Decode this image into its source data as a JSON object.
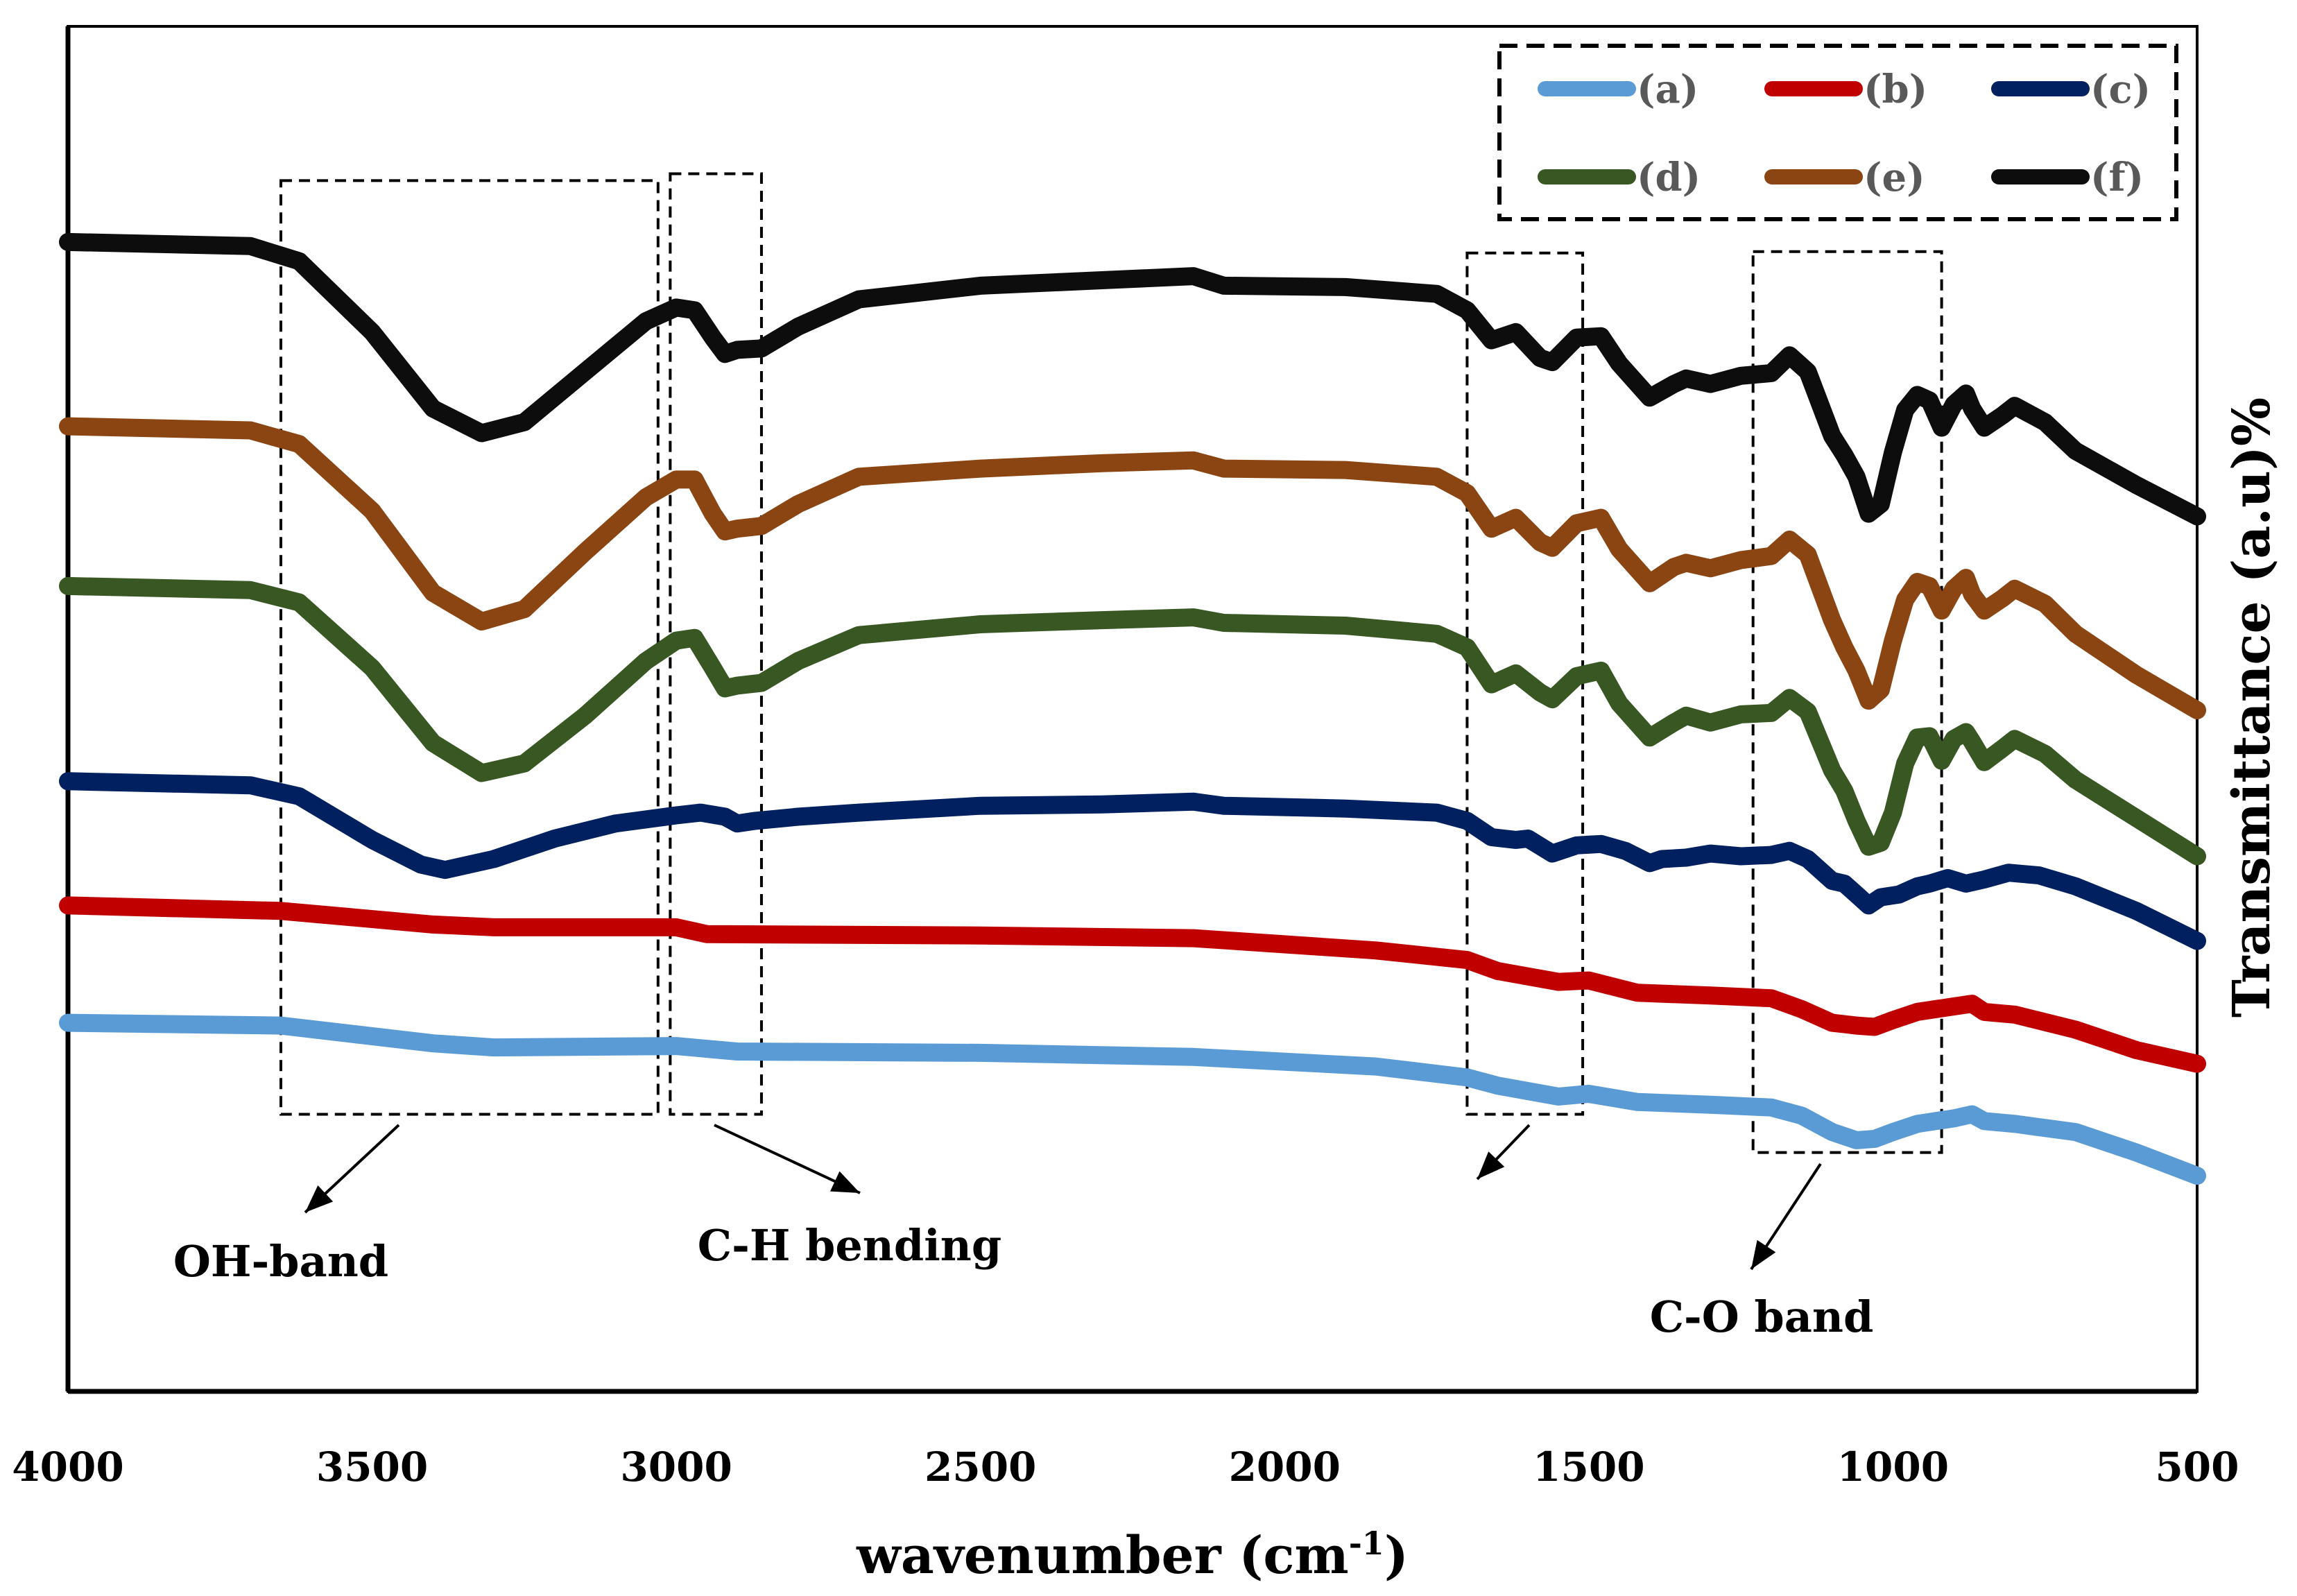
{
  "chart_data": {
    "type": "line",
    "title": "",
    "xlabel_main": "wavenumber (cm",
    "xlabel_sup": "-1",
    "xlabel_tail": ")",
    "ylabel": "Transmittance (a.u)%",
    "xlim": [
      4000,
      500
    ],
    "ylim": [
      0,
      100
    ],
    "x_ticks": [
      4000,
      3500,
      3000,
      2500,
      2000,
      1500,
      1000,
      500
    ],
    "grid": false,
    "legend_position": "top-right",
    "series": [
      {
        "name": "(a)",
        "color": "#5b9bd5",
        "points": [
          [
            4000,
            27
          ],
          [
            3650,
            26.8
          ],
          [
            3400,
            25.5
          ],
          [
            3300,
            25.2
          ],
          [
            3000,
            25.3
          ],
          [
            2900,
            24.9
          ],
          [
            2500,
            24.8
          ],
          [
            2150,
            24.5
          ],
          [
            1850,
            23.8
          ],
          [
            1700,
            23
          ],
          [
            1650,
            22.4
          ],
          [
            1550,
            21.6
          ],
          [
            1500,
            21.8
          ],
          [
            1420,
            21.2
          ],
          [
            1300,
            21
          ],
          [
            1200,
            20.8
          ],
          [
            1150,
            20.2
          ],
          [
            1100,
            19
          ],
          [
            1060,
            18.4
          ],
          [
            1030,
            18.5
          ],
          [
            1000,
            19
          ],
          [
            960,
            19.6
          ],
          [
            930,
            19.8
          ],
          [
            900,
            20
          ],
          [
            870,
            20.3
          ],
          [
            850,
            19.8
          ],
          [
            800,
            19.6
          ],
          [
            700,
            19
          ],
          [
            600,
            17.5
          ],
          [
            500,
            15.8
          ]
        ]
      },
      {
        "name": "(b)",
        "color": "#c00000",
        "points": [
          [
            4000,
            35.6
          ],
          [
            3650,
            35.2
          ],
          [
            3400,
            34.2
          ],
          [
            3300,
            34
          ],
          [
            3000,
            34
          ],
          [
            2950,
            33.5
          ],
          [
            2500,
            33.4
          ],
          [
            2150,
            33.2
          ],
          [
            1850,
            32.3
          ],
          [
            1700,
            31.6
          ],
          [
            1650,
            30.8
          ],
          [
            1550,
            30
          ],
          [
            1500,
            30.1
          ],
          [
            1420,
            29.2
          ],
          [
            1300,
            29
          ],
          [
            1200,
            28.8
          ],
          [
            1150,
            28
          ],
          [
            1100,
            27
          ],
          [
            1060,
            26.8
          ],
          [
            1030,
            26.7
          ],
          [
            1000,
            27.2
          ],
          [
            960,
            27.8
          ],
          [
            900,
            28.2
          ],
          [
            870,
            28.4
          ],
          [
            850,
            27.8
          ],
          [
            800,
            27.6
          ],
          [
            700,
            26.5
          ],
          [
            600,
            25
          ],
          [
            500,
            24
          ]
        ]
      },
      {
        "name": "(c)",
        "color": "#002060",
        "points": [
          [
            4000,
            44.7
          ],
          [
            3700,
            44.4
          ],
          [
            3620,
            43.6
          ],
          [
            3500,
            40.4
          ],
          [
            3420,
            38.6
          ],
          [
            3380,
            38.2
          ],
          [
            3300,
            39
          ],
          [
            3200,
            40.5
          ],
          [
            3100,
            41.6
          ],
          [
            3000,
            42.2
          ],
          [
            2960,
            42.4
          ],
          [
            2920,
            42.1
          ],
          [
            2900,
            41.6
          ],
          [
            2870,
            41.8
          ],
          [
            2800,
            42.1
          ],
          [
            2700,
            42.4
          ],
          [
            2500,
            42.9
          ],
          [
            2300,
            43
          ],
          [
            2150,
            43.2
          ],
          [
            2100,
            42.9
          ],
          [
            1900,
            42.7
          ],
          [
            1750,
            42.4
          ],
          [
            1700,
            41.8
          ],
          [
            1660,
            40.6
          ],
          [
            1620,
            40.4
          ],
          [
            1600,
            40.5
          ],
          [
            1560,
            39.4
          ],
          [
            1520,
            40
          ],
          [
            1480,
            40.1
          ],
          [
            1440,
            39.6
          ],
          [
            1400,
            38.7
          ],
          [
            1380,
            39
          ],
          [
            1340,
            39.1
          ],
          [
            1300,
            39.4
          ],
          [
            1250,
            39.2
          ],
          [
            1200,
            39.3
          ],
          [
            1170,
            39.6
          ],
          [
            1140,
            39
          ],
          [
            1100,
            37.4
          ],
          [
            1080,
            37.2
          ],
          [
            1060,
            36.4
          ],
          [
            1040,
            35.6
          ],
          [
            1020,
            36.2
          ],
          [
            990,
            36.4
          ],
          [
            960,
            37
          ],
          [
            940,
            37.2
          ],
          [
            910,
            37.6
          ],
          [
            880,
            37.2
          ],
          [
            850,
            37.5
          ],
          [
            810,
            38
          ],
          [
            760,
            37.8
          ],
          [
            700,
            37
          ],
          [
            600,
            35.2
          ],
          [
            500,
            33
          ]
        ]
      },
      {
        "name": "(d)",
        "color": "#385723",
        "points": [
          [
            4000,
            59
          ],
          [
            3700,
            58.7
          ],
          [
            3620,
            57.8
          ],
          [
            3500,
            53
          ],
          [
            3400,
            47.5
          ],
          [
            3320,
            45.3
          ],
          [
            3250,
            46
          ],
          [
            3150,
            49.5
          ],
          [
            3050,
            53.5
          ],
          [
            3000,
            55
          ],
          [
            2970,
            55.2
          ],
          [
            2940,
            53
          ],
          [
            2920,
            51.5
          ],
          [
            2900,
            51.7
          ],
          [
            2860,
            51.9
          ],
          [
            2800,
            53.5
          ],
          [
            2700,
            55.4
          ],
          [
            2500,
            56.2
          ],
          [
            2300,
            56.5
          ],
          [
            2150,
            56.7
          ],
          [
            2100,
            56.3
          ],
          [
            1900,
            56.1
          ],
          [
            1750,
            55.5
          ],
          [
            1700,
            54.5
          ],
          [
            1660,
            51.8
          ],
          [
            1620,
            52.6
          ],
          [
            1580,
            51.2
          ],
          [
            1560,
            50.7
          ],
          [
            1520,
            52.4
          ],
          [
            1480,
            52.8
          ],
          [
            1450,
            50.4
          ],
          [
            1400,
            47.9
          ],
          [
            1360,
            49
          ],
          [
            1340,
            49.5
          ],
          [
            1300,
            49
          ],
          [
            1250,
            49.6
          ],
          [
            1200,
            49.7
          ],
          [
            1170,
            50.8
          ],
          [
            1140,
            49.8
          ],
          [
            1100,
            45.5
          ],
          [
            1080,
            44
          ],
          [
            1060,
            41.8
          ],
          [
            1040,
            39.9
          ],
          [
            1020,
            40.2
          ],
          [
            1000,
            42.4
          ],
          [
            980,
            46
          ],
          [
            960,
            47.9
          ],
          [
            940,
            48
          ],
          [
            920,
            46.2
          ],
          [
            900,
            47.8
          ],
          [
            880,
            48.3
          ],
          [
            870,
            47.6
          ],
          [
            850,
            46.1
          ],
          [
            820,
            47.1
          ],
          [
            800,
            47.8
          ],
          [
            750,
            46.7
          ],
          [
            700,
            44.8
          ],
          [
            600,
            42
          ],
          [
            500,
            39.2
          ]
        ]
      },
      {
        "name": "(e)",
        "color": "#8b4513",
        "points": [
          [
            4000,
            70.7
          ],
          [
            3700,
            70.4
          ],
          [
            3620,
            69.4
          ],
          [
            3500,
            64.5
          ],
          [
            3400,
            58.5
          ],
          [
            3320,
            56.4
          ],
          [
            3250,
            57.3
          ],
          [
            3150,
            61.5
          ],
          [
            3050,
            65.5
          ],
          [
            3000,
            66.8
          ],
          [
            2970,
            66.8
          ],
          [
            2940,
            64.3
          ],
          [
            2920,
            63
          ],
          [
            2900,
            63.2
          ],
          [
            2860,
            63.4
          ],
          [
            2800,
            65
          ],
          [
            2700,
            67
          ],
          [
            2500,
            67.6
          ],
          [
            2300,
            68
          ],
          [
            2150,
            68.2
          ],
          [
            2100,
            67.6
          ],
          [
            1900,
            67.5
          ],
          [
            1750,
            67
          ],
          [
            1700,
            65.8
          ],
          [
            1660,
            63.2
          ],
          [
            1620,
            64
          ],
          [
            1580,
            62.2
          ],
          [
            1560,
            61.8
          ],
          [
            1520,
            63.6
          ],
          [
            1480,
            64
          ],
          [
            1450,
            61.7
          ],
          [
            1400,
            59.2
          ],
          [
            1360,
            60.4
          ],
          [
            1340,
            60.7
          ],
          [
            1300,
            60.3
          ],
          [
            1250,
            60.9
          ],
          [
            1200,
            61.2
          ],
          [
            1170,
            62.4
          ],
          [
            1140,
            61.3
          ],
          [
            1100,
            56.5
          ],
          [
            1080,
            54.5
          ],
          [
            1060,
            52.8
          ],
          [
            1040,
            50.6
          ],
          [
            1020,
            51.4
          ],
          [
            1000,
            55
          ],
          [
            980,
            58
          ],
          [
            960,
            59.3
          ],
          [
            940,
            59
          ],
          [
            920,
            57.2
          ],
          [
            900,
            58.8
          ],
          [
            880,
            59.6
          ],
          [
            870,
            58.4
          ],
          [
            850,
            57.2
          ],
          [
            820,
            58.1
          ],
          [
            800,
            58.8
          ],
          [
            750,
            57.7
          ],
          [
            700,
            55.5
          ],
          [
            600,
            52.5
          ],
          [
            500,
            49.9
          ]
        ]
      },
      {
        "name": "(f)",
        "color": "#0d0d0d",
        "points": [
          [
            4000,
            84.2
          ],
          [
            3700,
            83.9
          ],
          [
            3620,
            82.8
          ],
          [
            3500,
            77.6
          ],
          [
            3400,
            72
          ],
          [
            3320,
            70.2
          ],
          [
            3250,
            71
          ],
          [
            3150,
            74.7
          ],
          [
            3050,
            78.4
          ],
          [
            3000,
            79.4
          ],
          [
            2970,
            79.2
          ],
          [
            2940,
            77.2
          ],
          [
            2920,
            76
          ],
          [
            2900,
            76.3
          ],
          [
            2860,
            76.4
          ],
          [
            2800,
            78
          ],
          [
            2700,
            80
          ],
          [
            2500,
            81
          ],
          [
            2300,
            81.4
          ],
          [
            2150,
            81.7
          ],
          [
            2100,
            81
          ],
          [
            1900,
            80.9
          ],
          [
            1750,
            80.4
          ],
          [
            1700,
            79.2
          ],
          [
            1660,
            77
          ],
          [
            1620,
            77.6
          ],
          [
            1580,
            75.7
          ],
          [
            1560,
            75.4
          ],
          [
            1520,
            77.2
          ],
          [
            1480,
            77.3
          ],
          [
            1450,
            75.3
          ],
          [
            1400,
            72.8
          ],
          [
            1360,
            73.8
          ],
          [
            1340,
            74.2
          ],
          [
            1300,
            73.8
          ],
          [
            1250,
            74.4
          ],
          [
            1200,
            74.6
          ],
          [
            1170,
            75.9
          ],
          [
            1140,
            74.7
          ],
          [
            1100,
            70
          ],
          [
            1080,
            68.6
          ],
          [
            1060,
            67
          ],
          [
            1040,
            64.3
          ],
          [
            1020,
            65
          ],
          [
            1000,
            68.8
          ],
          [
            980,
            71.9
          ],
          [
            960,
            73
          ],
          [
            940,
            72.6
          ],
          [
            920,
            70.6
          ],
          [
            900,
            72.3
          ],
          [
            880,
            73.1
          ],
          [
            870,
            72
          ],
          [
            850,
            70.6
          ],
          [
            820,
            71.5
          ],
          [
            800,
            72.2
          ],
          [
            750,
            71
          ],
          [
            700,
            68.9
          ],
          [
            600,
            66.4
          ],
          [
            500,
            64.1
          ]
        ]
      }
    ],
    "annotations": [
      {
        "id": "oh",
        "label": "OH-band",
        "x1": 3650,
        "x2": 3030,
        "y1": 20.3,
        "y2": 88.7
      },
      {
        "id": "ch",
        "label": "C-H bending",
        "x1": 3010,
        "x2": 2860,
        "y1": 20.3,
        "y2": 89.2
      },
      {
        "id": "mid",
        "label": "",
        "x1": 1700,
        "x2": 1510,
        "y1": 20.3,
        "y2": 83.4
      },
      {
        "id": "co",
        "label": "C-O band",
        "x1": 1230,
        "x2": 920,
        "y1": 17.5,
        "y2": 83.5
      }
    ]
  }
}
